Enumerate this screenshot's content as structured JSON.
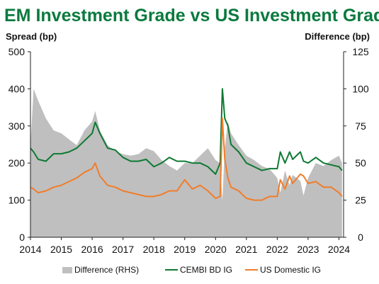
{
  "chart_data": {
    "type": "line",
    "title": "EM Investment Grade vs US Investment Grade",
    "y_left_label": "Spread (bp)",
    "y_right_label": "Difference (bp)",
    "ylim_left": [
      0,
      500
    ],
    "ylim_right": [
      0,
      125
    ],
    "yticks_left": [
      0,
      100,
      200,
      300,
      400,
      500
    ],
    "yticks_right": [
      0,
      25,
      50,
      75,
      100,
      125
    ],
    "xlim": [
      2014.0,
      2024.15
    ],
    "xticks": [
      "2014",
      "2015",
      "2016",
      "2017",
      "2018",
      "2019",
      "2020",
      "2021",
      "2022",
      "2023",
      "2024"
    ],
    "legend_position": "bottom",
    "grid": false,
    "x": [
      2014.0,
      2014.1,
      2014.25,
      2014.5,
      2014.75,
      2015.0,
      2015.25,
      2015.5,
      2015.75,
      2016.0,
      2016.1,
      2016.25,
      2016.5,
      2016.75,
      2017.0,
      2017.25,
      2017.5,
      2017.75,
      2018.0,
      2018.25,
      2018.5,
      2018.75,
      2019.0,
      2019.25,
      2019.5,
      2019.75,
      2020.0,
      2020.15,
      2020.22,
      2020.3,
      2020.4,
      2020.5,
      2020.75,
      2021.0,
      2021.25,
      2021.5,
      2021.75,
      2022.0,
      2022.1,
      2022.25,
      2022.4,
      2022.5,
      2022.75,
      2022.85,
      2023.0,
      2023.25,
      2023.5,
      2023.75,
      2024.0,
      2024.1
    ],
    "series": [
      {
        "name": "Difference (RHS)",
        "axis": "right",
        "color": "#bfbfbf",
        "style": "area",
        "values": [
          62,
          100,
          92,
          80,
          72,
          70,
          66,
          62,
          72,
          78,
          85,
          72,
          62,
          58,
          56,
          55,
          56,
          60,
          58,
          52,
          48,
          45,
          50,
          50,
          55,
          60,
          52,
          50,
          25,
          60,
          78,
          70,
          62,
          55,
          52,
          48,
          46,
          40,
          30,
          45,
          35,
          42,
          38,
          28,
          40,
          50,
          48,
          52,
          55,
          50
        ]
      },
      {
        "name": "CEMBI BD IG",
        "axis": "left",
        "color": "#0e7a33",
        "style": "line",
        "values": [
          240,
          230,
          210,
          205,
          225,
          225,
          230,
          240,
          260,
          280,
          310,
          280,
          240,
          235,
          215,
          205,
          205,
          210,
          190,
          200,
          215,
          205,
          205,
          200,
          200,
          190,
          170,
          200,
          400,
          320,
          300,
          250,
          230,
          200,
          190,
          180,
          185,
          185,
          230,
          200,
          230,
          210,
          230,
          205,
          200,
          215,
          200,
          195,
          190,
          180
        ]
      },
      {
        "name": "US Domestic IG",
        "axis": "left",
        "color": "#f07d2a",
        "style": "line",
        "values": [
          135,
          130,
          120,
          125,
          135,
          140,
          150,
          160,
          175,
          185,
          200,
          165,
          140,
          135,
          125,
          120,
          115,
          110,
          110,
          115,
          125,
          125,
          155,
          130,
          140,
          125,
          105,
          110,
          320,
          210,
          160,
          135,
          125,
          105,
          100,
          100,
          110,
          110,
          155,
          130,
          165,
          145,
          170,
          165,
          145,
          150,
          135,
          135,
          120,
          110
        ]
      }
    ]
  }
}
